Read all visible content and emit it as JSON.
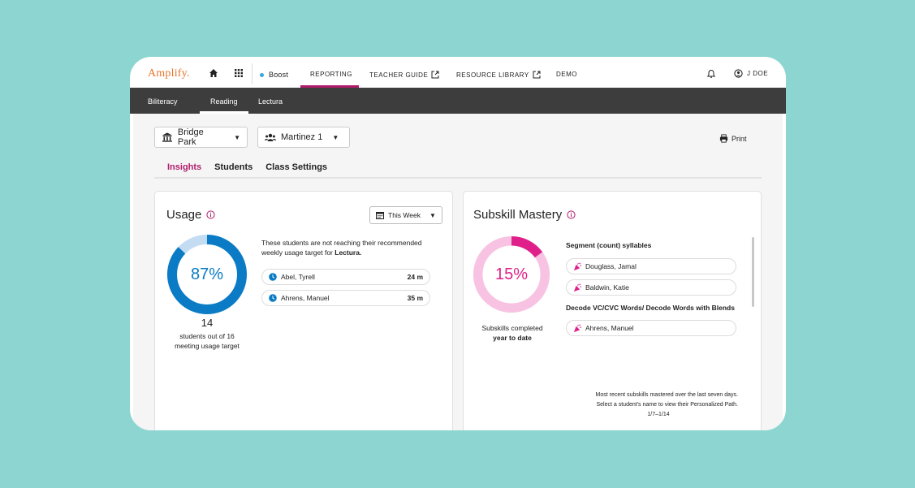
{
  "topnav": {
    "logo": "Amplify.",
    "boost": "Boost",
    "links": {
      "reporting": "REPORTING",
      "teacher_guide": "TEACHER GUIDE",
      "resource_library": "RESOURCE LIBRARY",
      "demo": "DEMO"
    },
    "user": "J DOE",
    "icons": [
      "home-icon",
      "apps-grid-icon",
      "external-link-icon",
      "bell-icon",
      "user-circle-icon"
    ]
  },
  "subnav": {
    "tabs": [
      "Biliteracy",
      "Reading",
      "Lectura"
    ],
    "active": "Reading"
  },
  "filters": {
    "school": "Bridge Park",
    "class": "Martinez 1",
    "print": "Print"
  },
  "tabs": [
    "Insights",
    "Students",
    "Class Settings"
  ],
  "active_tab": "Insights",
  "usage": {
    "title": "Usage",
    "period": "This Week",
    "percent": 87,
    "percent_label": "87%",
    "count": "14",
    "count_caption": "students out of 16 meeting usage target",
    "message": "These students are not reaching their recommended weekly usage target for",
    "message_program": "Lectura.",
    "students": [
      {
        "name": "Abel, Tyrell",
        "time": "24 m"
      },
      {
        "name": "Ahrens, Manuel",
        "time": "35 m"
      }
    ],
    "colors": {
      "ring": "#0a7bc4",
      "track": "#c3dcf2"
    }
  },
  "mastery": {
    "title": "Subskill Mastery",
    "percent": 15,
    "percent_label": "15%",
    "caption_line1": "Subskills completed",
    "caption_line2": "year to date",
    "skills": [
      {
        "name": "Segment (count) syllables",
        "students": [
          "Douglass, Jamal",
          "Baldwin, Katie"
        ]
      },
      {
        "name": "Decode VC/CVC Words/ Decode Words with Blends",
        "students": [
          "Ahrens, Manuel"
        ]
      }
    ],
    "footnote_line1": "Most recent subskills mastered over the last seven days.",
    "footnote_line2": "Select a student's name to view their Personalized Path.",
    "date_range": "1/7–1/14",
    "colors": {
      "ring": "#e0208a",
      "track": "#f8c3e2"
    }
  }
}
